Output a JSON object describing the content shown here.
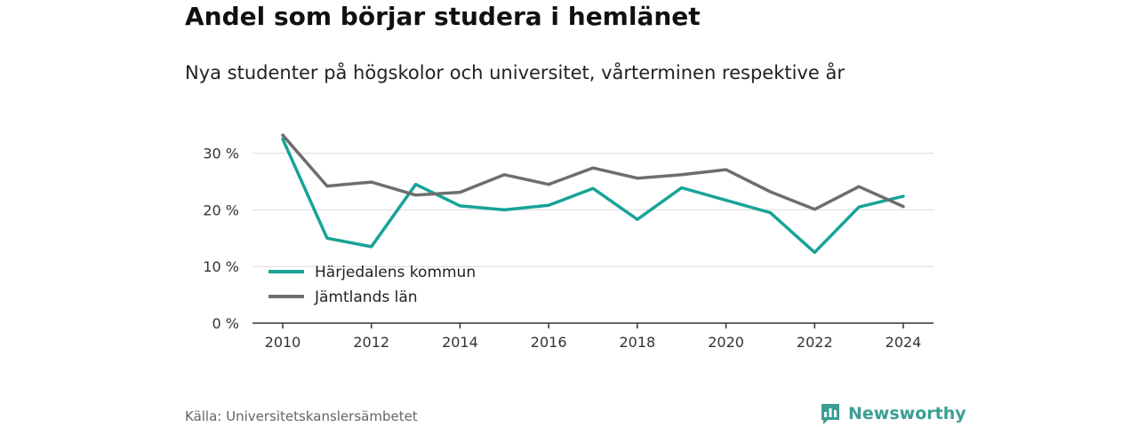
{
  "header": {
    "title": "Andel som börjar studera i hemlänet",
    "subtitle": "Nya studenter på högskolor och universitet, vårterminen respektive år"
  },
  "footer": {
    "source": "Källa: Universitetskanslersämbetet",
    "brand": "Newsworthy"
  },
  "colors": {
    "series_1": "#17a398",
    "series_2": "#6e6e6e",
    "brand": "#3a9e93"
  },
  "icons": {
    "brand_logo": "bar-chart-speech-bubble-icon"
  },
  "chart_data": {
    "type": "line",
    "x": [
      2010,
      2011,
      2012,
      2013,
      2014,
      2015,
      2016,
      2017,
      2018,
      2019,
      2020,
      2021,
      2022,
      2023,
      2024
    ],
    "series": [
      {
        "name": "Härjedalens kommun",
        "values": [
          32.5,
          15.0,
          13.5,
          24.5,
          20.7,
          20.0,
          20.8,
          23.8,
          18.3,
          23.9,
          21.7,
          19.5,
          12.5,
          20.5,
          22.4
        ]
      },
      {
        "name": "Jämtlands län",
        "values": [
          33.2,
          24.2,
          24.9,
          22.6,
          23.1,
          26.2,
          24.5,
          27.4,
          25.6,
          26.2,
          27.1,
          23.2,
          20.1,
          24.1,
          20.6
        ]
      }
    ],
    "x_ticks": [
      2010,
      2012,
      2014,
      2016,
      2018,
      2020,
      2022,
      2024
    ],
    "x_tick_labels": [
      "2010",
      "2012",
      "2014",
      "2016",
      "2018",
      "2020",
      "2022",
      "2024"
    ],
    "y_ticks": [
      0,
      10,
      20,
      30
    ],
    "y_tick_labels": [
      "0 %",
      "10 %",
      "20 %",
      "30 %"
    ],
    "ylim": [
      0,
      35
    ],
    "grid": true,
    "legend_position": "bottom-left",
    "xlabel": "",
    "ylabel": ""
  }
}
